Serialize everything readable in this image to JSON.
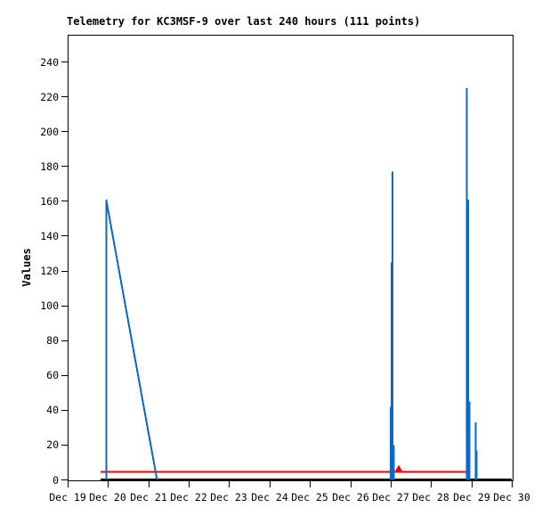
{
  "chart_data": {
    "type": "line",
    "title": "Telemetry for KC3MSF-9 over last 240 hours (111 points)",
    "ylabel": "Values",
    "x_tick_labels": [
      "Dec 19",
      "Dec 20",
      "Dec 21",
      "Dec 22",
      "Dec 23",
      "Dec 24",
      "Dec 25",
      "Dec 26",
      "Dec 27",
      "Dec 28",
      "Dec 29",
      "Dec 30"
    ],
    "y_tick_values": [
      0,
      20,
      40,
      60,
      80,
      100,
      120,
      140,
      160,
      180,
      200,
      220,
      240
    ],
    "ylim": [
      0,
      255
    ],
    "xlim_days": [
      0,
      11
    ],
    "grid": false,
    "legend": "none",
    "background_color": "#ffffff",
    "border_color": "#000000",
    "series": [
      {
        "name": "zero-baseline-black",
        "color": "#000000",
        "stroke_width": 3,
        "segments": [
          [
            [
              0.815,
              0
            ],
            [
              11.0,
              0
            ]
          ]
        ]
      },
      {
        "name": "secondary-channel-red",
        "color": "#ee0000",
        "stroke_width": 2,
        "segments": [
          [
            [
              0.815,
              4.5
            ],
            [
              9.875,
              4.5
            ]
          ]
        ],
        "marker_polygon": [
          [
            8.136,
            4.7
          ],
          [
            8.2,
            7.6
          ],
          [
            8.27,
            4.7
          ]
        ]
      },
      {
        "name": "telemetry-values-blue",
        "color": "#0a68c8",
        "stroke_width": 2,
        "segments": [
          [
            [
              0.955,
              0
            ],
            [
              0.955,
              161
            ],
            [
              2.215,
              0
            ]
          ],
          [
            [
              8.0,
              0
            ],
            [
              8.0,
              42
            ]
          ],
          [
            [
              8.025,
              0
            ],
            [
              8.025,
              125
            ]
          ],
          [
            [
              8.05,
              0
            ],
            [
              8.05,
              177
            ]
          ],
          [
            [
              8.08,
              0
            ],
            [
              8.08,
              20
            ]
          ],
          [
            [
              9.885,
              0
            ],
            [
              9.885,
              225
            ]
          ],
          [
            [
              9.92,
              0
            ],
            [
              9.92,
              161
            ]
          ],
          [
            [
              9.95,
              0
            ],
            [
              9.95,
              45
            ]
          ],
          [
            [
              10.105,
              0
            ],
            [
              10.105,
              33
            ]
          ],
          [
            [
              10.135,
              0
            ],
            [
              10.135,
              17
            ]
          ]
        ]
      }
    ],
    "notable_values": {
      "peak_dec20": 161,
      "peak_dec27": 177,
      "peak_dec29": 225,
      "red_line_level": 4.5
    }
  }
}
